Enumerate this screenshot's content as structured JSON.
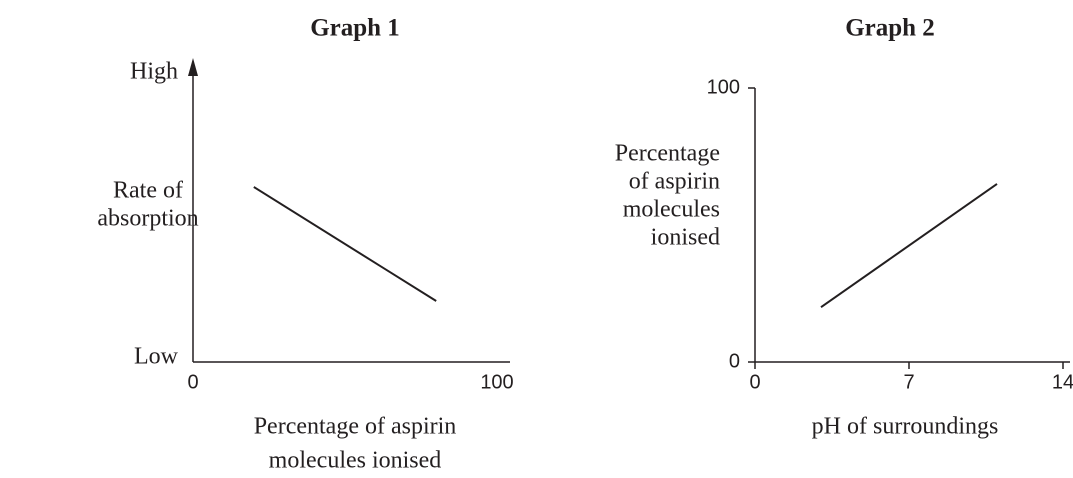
{
  "chart_data": [
    {
      "type": "line",
      "title": "Graph 1",
      "ylabel": [
        "Rate of",
        "absorption"
      ],
      "xlabel": [
        "Percentage of aspirin",
        "molecules ionised"
      ],
      "x": [
        20,
        80
      ],
      "series": [
        {
          "color": "#231f20",
          "values": [
            0.6,
            0.2
          ]
        }
      ],
      "xlim": [
        0,
        100
      ],
      "xticks": [
        0,
        100
      ],
      "ylim": [
        0,
        1
      ],
      "yticks": [
        {
          "value": 0,
          "label": "Low"
        },
        {
          "value": 1,
          "label": "High"
        }
      ]
    },
    {
      "type": "line",
      "title": "Graph 2",
      "ylabel": [
        "Percentage",
        "of aspirin",
        "molecules",
        "ionised"
      ],
      "xlabel": [
        "pH of surroundings"
      ],
      "x": [
        3,
        11
      ],
      "series": [
        {
          "color": "#231f20",
          "values": [
            20,
            65
          ]
        }
      ],
      "xlim": [
        0,
        14
      ],
      "xticks": [
        0,
        7,
        14
      ],
      "ylim": [
        0,
        100
      ],
      "yticks": [
        0,
        100
      ]
    }
  ]
}
